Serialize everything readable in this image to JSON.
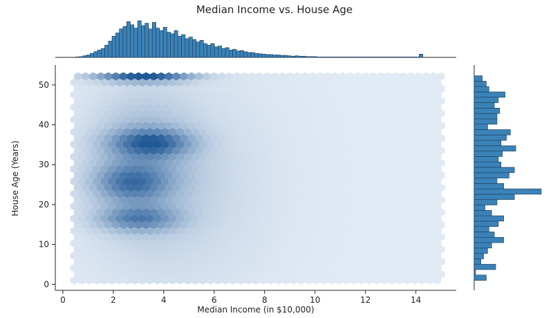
{
  "chart_data": {
    "type": "hexbin",
    "title": "Median Income vs. House Age",
    "xlabel": "Median Income (in $10,000)",
    "ylabel": "House Age (Years)",
    "xlim": [
      -0.3,
      15.6
    ],
    "ylim": [
      -1.5,
      55
    ],
    "xticks": [
      0,
      2,
      4,
      6,
      8,
      10,
      12,
      14
    ],
    "yticks": [
      0,
      10,
      20,
      30,
      40,
      50
    ],
    "grid": false,
    "color": "#2a6fa8",
    "marginal_x": {
      "bin_start": 0.5,
      "bin_width": 0.145,
      "counts": [
        1,
        2,
        4,
        6,
        10,
        14,
        18,
        22,
        30,
        40,
        52,
        60,
        70,
        76,
        88,
        80,
        72,
        90,
        78,
        84,
        70,
        86,
        72,
        66,
        74,
        62,
        58,
        66,
        52,
        56,
        46,
        50,
        44,
        38,
        42,
        34,
        30,
        34,
        26,
        28,
        22,
        24,
        18,
        20,
        16,
        17,
        14,
        12,
        12,
        10,
        9,
        8,
        7,
        7,
        6,
        6,
        5,
        5,
        4,
        3,
        4,
        3,
        3,
        2,
        2,
        2,
        1,
        1,
        1,
        1,
        1,
        1,
        1,
        1,
        1,
        1,
        1,
        1,
        1,
        1,
        1,
        1,
        1,
        1,
        1,
        1,
        1,
        1,
        1,
        1,
        1,
        1,
        1,
        1,
        8
      ],
      "color": "#3b82b8"
    },
    "marginal_y": {
      "bin_start": 1,
      "bin_width": 1.35,
      "counts": [
        18,
        2,
        32,
        10,
        14,
        20,
        26,
        44,
        30,
        22,
        36,
        44,
        26,
        16,
        34,
        60,
        100,
        44,
        34,
        52,
        60,
        40,
        36,
        42,
        62,
        40,
        48,
        54,
        20,
        34,
        34,
        38,
        30,
        36,
        46,
        22,
        18,
        12
      ],
      "color": "#3b82b8"
    }
  }
}
